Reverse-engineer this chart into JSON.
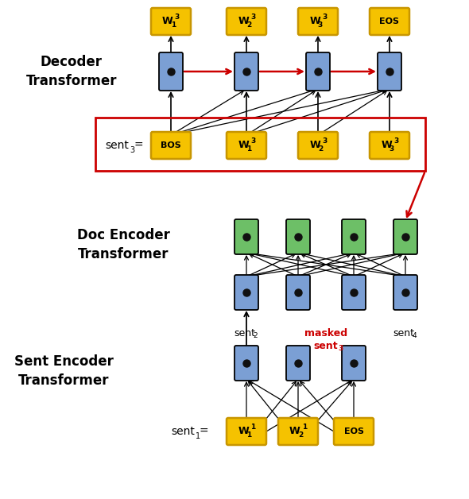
{
  "fig_width": 5.9,
  "fig_height": 6.28,
  "dpi": 100,
  "bg_color": "#ffffff",
  "blue_color": "#7b9fd4",
  "green_color": "#6dbf67",
  "yellow_color": "#f5c200",
  "yellow_edge": "#c89600",
  "dot_color": "#111111",
  "red_color": "#cc0000",
  "black_color": "#000000",
  "decoder_label": "Decoder\nTransformer",
  "doc_encoder_label": "Doc Encoder\nTransformer",
  "sent_encoder_label": "Sent Encoder\nTransformer"
}
